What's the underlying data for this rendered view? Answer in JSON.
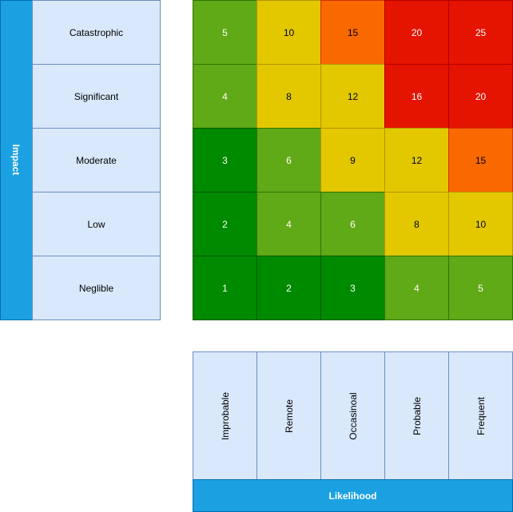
{
  "impact": {
    "label": "Impact",
    "levels": [
      "Catastrophic",
      "Significant",
      "Moderate",
      "Low",
      "Neglible"
    ]
  },
  "likelihood": {
    "label": "Likelihood",
    "levels": [
      "Improbable",
      "Remote",
      "Occasinoal",
      "Probable",
      "Frequent"
    ]
  },
  "matrix": {
    "rows": [
      [
        "5",
        "10",
        "15",
        "20",
        "25"
      ],
      [
        "4",
        "8",
        "12",
        "16",
        "20"
      ],
      [
        "3",
        "6",
        "9",
        "12",
        "15"
      ],
      [
        "2",
        "4",
        "6",
        "8",
        "10"
      ],
      [
        "1",
        "2",
        "3",
        "4",
        "5"
      ]
    ]
  },
  "colors": {
    "axis_band": "#1ba1e2",
    "level_fill": "#dae8fc",
    "dark_green": "#008a00",
    "light_green": "#60a917",
    "yellow": "#e3c800",
    "orange": "#fa6800",
    "red": "#e51400"
  }
}
